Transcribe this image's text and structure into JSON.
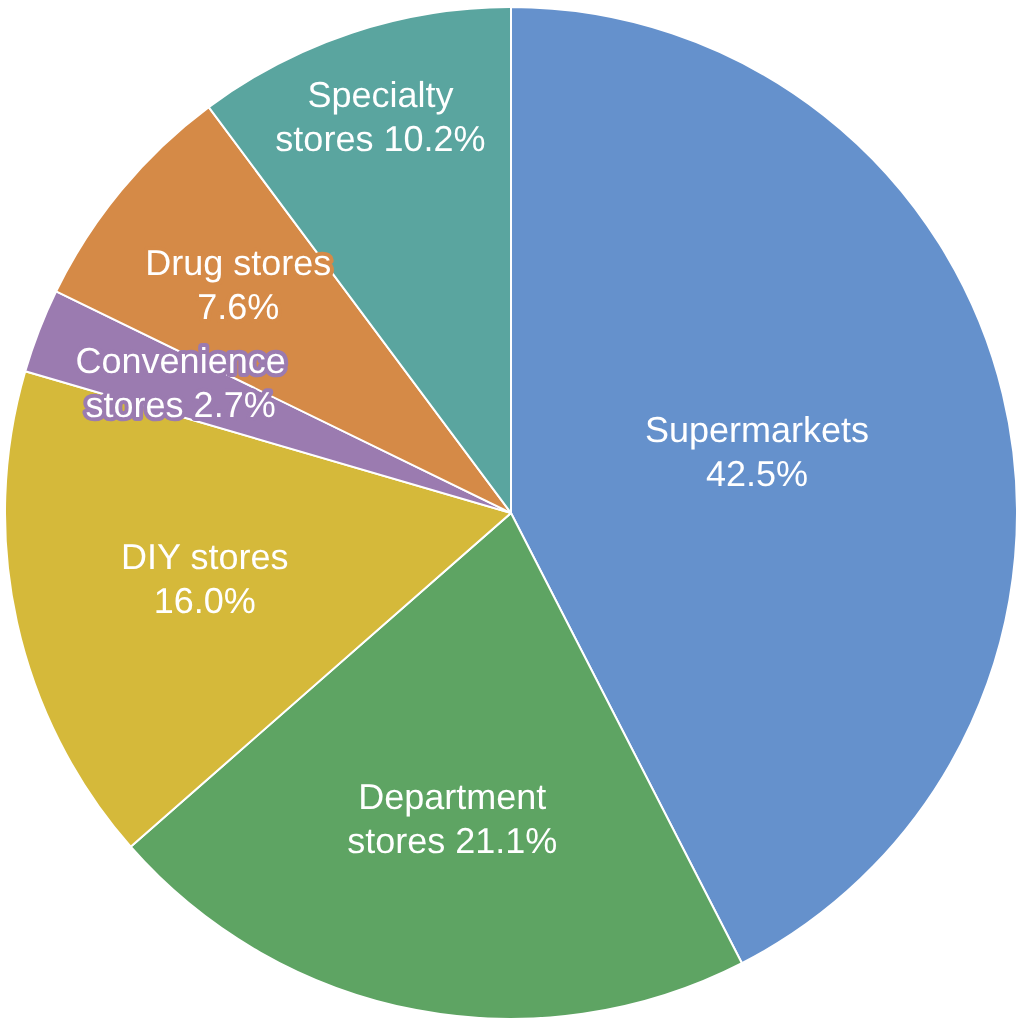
{
  "chart_data": {
    "type": "pie",
    "categories": [
      "Supermarkets",
      "Department stores",
      "DIY stores",
      "Convenience stores",
      "Drug stores",
      "Specialty stores"
    ],
    "values": [
      42.5,
      21.1,
      16.0,
      2.7,
      7.6,
      10.2
    ],
    "value_labels": [
      "42.5%",
      "21.1%",
      "16.0%",
      "2.7%",
      "7.6%",
      "10.2%"
    ],
    "colors": [
      "#6591cc",
      "#5ea463",
      "#d5b93a",
      "#9b7bb0",
      "#d58a47",
      "#5aa59f"
    ],
    "legend": false
  }
}
